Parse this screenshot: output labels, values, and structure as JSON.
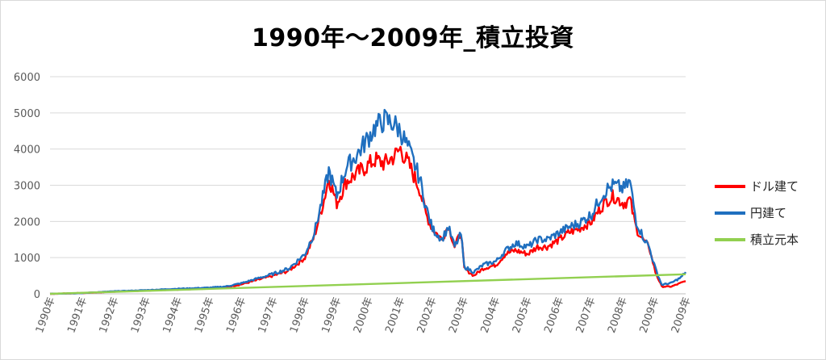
{
  "chart_data": {
    "type": "line",
    "title": "1990年～2009年_積立投資",
    "xlabel": "",
    "ylabel": "",
    "ylim": [
      0,
      6000
    ],
    "yticks": [
      "0",
      "1000",
      "2000",
      "3000",
      "4000",
      "5000",
      "6000"
    ],
    "xticks": [
      "1990年",
      "1991年",
      "1992年",
      "1993年",
      "1994年",
      "1995年",
      "1996年",
      "1997年",
      "1998年",
      "1999年",
      "2000年",
      "2001年",
      "2002年",
      "2003年",
      "2004年",
      "2005年",
      "2006年",
      "2007年",
      "2008年",
      "2009年",
      "2009年"
    ],
    "grid": "horizontal",
    "legend_position": "right",
    "colors": {
      "dollar": "#ff0000",
      "yen": "#1f6fbf",
      "principal": "#92d050"
    },
    "series": [
      {
        "name": "ドル建て",
        "color": "#ff0000",
        "x": [
          1990.0,
          1991.0,
          1992.0,
          1993.0,
          1994.0,
          1995.0,
          1995.5,
          1996.0,
          1996.5,
          1997.0,
          1997.5,
          1998.0,
          1998.3,
          1998.6,
          1998.75,
          1999.0,
          1999.3,
          1999.6,
          1999.9,
          2000.2,
          2000.5,
          2000.8,
          2001.0,
          2001.3,
          2001.6,
          2001.8,
          2002.0,
          2002.3,
          2002.5,
          2002.7,
          2002.9,
          2003.0,
          2003.3,
          2003.6,
          2004.0,
          2004.3,
          2004.6,
          2005.0,
          2005.3,
          2005.6,
          2006.0,
          2006.3,
          2006.6,
          2007.0,
          2007.3,
          2007.5,
          2007.7,
          2008.0,
          2008.2,
          2008.4,
          2008.6,
          2008.8,
          2009.0,
          2009.2,
          2009.5,
          2009.8,
          2009.95
        ],
        "y": [
          0,
          20,
          60,
          90,
          120,
          150,
          180,
          260,
          380,
          500,
          640,
          1000,
          1600,
          2600,
          3200,
          2500,
          3100,
          3300,
          3500,
          3700,
          3600,
          3800,
          4000,
          3500,
          2900,
          2200,
          1800,
          1500,
          1900,
          1300,
          1700,
          700,
          500,
          700,
          800,
          1100,
          1200,
          1100,
          1300,
          1300,
          1500,
          1700,
          1800,
          2000,
          2400,
          2600,
          2700,
          2500,
          2600,
          1800,
          1500,
          1300,
          600,
          200,
          200,
          300,
          350
        ]
      },
      {
        "name": "円建て",
        "color": "#1f6fbf",
        "x": [
          1990.0,
          1991.0,
          1992.0,
          1993.0,
          1994.0,
          1995.0,
          1995.5,
          1996.0,
          1996.5,
          1997.0,
          1997.5,
          1998.0,
          1998.3,
          1998.6,
          1998.75,
          1999.0,
          1999.3,
          1999.6,
          1999.9,
          2000.2,
          2000.5,
          2000.8,
          2001.0,
          2001.3,
          2001.6,
          2001.8,
          2002.0,
          2002.3,
          2002.5,
          2002.7,
          2002.9,
          2003.0,
          2003.3,
          2003.6,
          2004.0,
          2004.3,
          2004.6,
          2005.0,
          2005.3,
          2005.6,
          2006.0,
          2006.3,
          2006.6,
          2007.0,
          2007.3,
          2007.5,
          2007.7,
          2008.0,
          2008.2,
          2008.4,
          2008.6,
          2008.8,
          2009.0,
          2009.2,
          2009.5,
          2009.8,
          2009.95
        ],
        "y": [
          0,
          20,
          70,
          100,
          140,
          170,
          200,
          290,
          420,
          550,
          700,
          1100,
          1700,
          2800,
          3400,
          2700,
          3500,
          3800,
          4200,
          4600,
          4800,
          4700,
          4500,
          3900,
          3200,
          2400,
          1800,
          1500,
          1850,
          1300,
          1650,
          750,
          600,
          800,
          900,
          1200,
          1400,
          1300,
          1500,
          1500,
          1700,
          1850,
          1950,
          2200,
          2700,
          2900,
          3000,
          2900,
          3100,
          2000,
          1600,
          1300,
          700,
          250,
          300,
          450,
          600
        ]
      },
      {
        "name": "積立元本",
        "color": "#92d050",
        "x": [
          1990.0,
          2009.95
        ],
        "y": [
          0,
          540
        ]
      }
    ]
  }
}
